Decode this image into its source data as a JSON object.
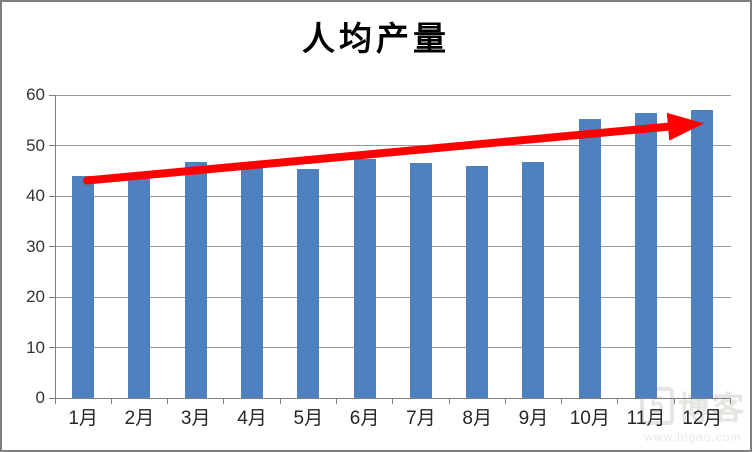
{
  "colors": {
    "bar": "#4e81bd",
    "arrow": "#ff0000",
    "gridline": "#9a9a9a",
    "axis": "#7f7f7f",
    "label_text": "#262626",
    "frame_border": "#7f7f7f"
  },
  "chart_data": {
    "type": "bar",
    "title": "人均产量",
    "xlabel": "",
    "ylabel": "",
    "categories": [
      "1月",
      "2月",
      "3月",
      "4月",
      "5月",
      "6月",
      "7月",
      "8月",
      "9月",
      "10月",
      "11月",
      "12月"
    ],
    "values": [
      43.9,
      44.5,
      46.7,
      45.7,
      45.4,
      47.3,
      46.6,
      45.9,
      46.8,
      55.2,
      56.5,
      57.1
    ],
    "ylim": [
      0,
      60
    ],
    "yticks": [
      0,
      10,
      20,
      30,
      40,
      50,
      60
    ],
    "grid": true,
    "legend": "none",
    "annotation": {
      "type": "arrow",
      "description": "thick red straight arrow showing upward trend across the bars",
      "color": "#ff0000",
      "from": {
        "category": "1月",
        "value": 43.0
      },
      "to": {
        "category": "12月",
        "value": 54.7
      }
    }
  },
  "watermark": {
    "logo_char": "5",
    "text": "博客",
    "url": "www.bigao.com"
  }
}
